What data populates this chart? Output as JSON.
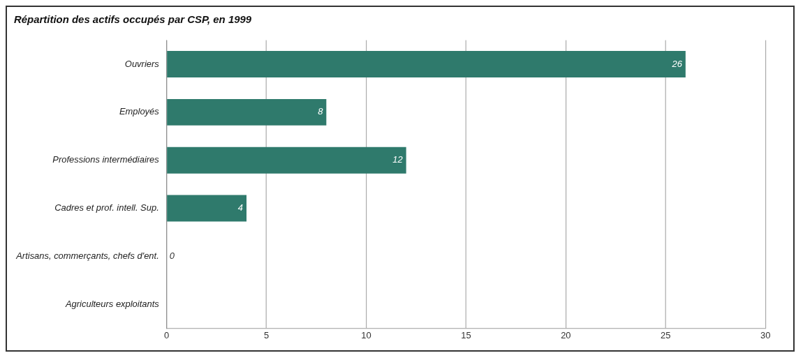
{
  "chart_data": {
    "type": "bar",
    "orientation": "horizontal",
    "title": "Répartition des actifs occupés par CSP, en 1999",
    "categories": [
      "Ouvriers",
      "Employés",
      "Professions intermédiaires",
      "Cadres et prof. intell. Sup.",
      "Artisans, commerçants, chefs d'ent.",
      "Agriculteurs exploitants"
    ],
    "values": [
      26,
      8,
      12,
      4,
      0,
      0
    ],
    "value_labels": [
      "26",
      "8",
      "12",
      "4",
      "0",
      null
    ],
    "color": "#2f7a6c",
    "xlim": [
      0,
      30
    ],
    "xticks": [
      0,
      5,
      10,
      15,
      20,
      25,
      30
    ],
    "grid": "x"
  }
}
